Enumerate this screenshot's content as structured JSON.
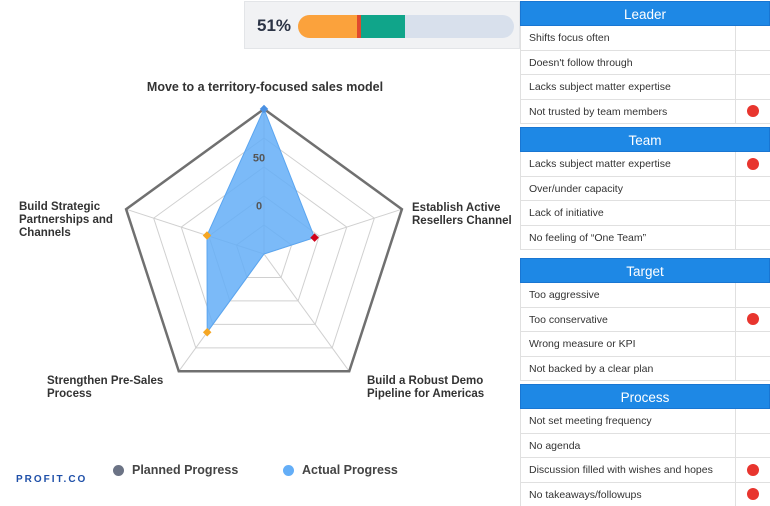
{
  "progress": {
    "percent_label": "51%",
    "orange_fraction": 0.28,
    "green_fraction": 0.2,
    "orange_color": "#fba23c",
    "marker_color": "#e04a2f",
    "green_color": "#10a58a"
  },
  "chart_data": {
    "type": "radar",
    "title": "Move to a territory-focused sales model",
    "axes": [
      "Move to a territory-focused sales model",
      "Establish Active Resellers Channel",
      "Build a Robust Demo Pipeline for Americas",
      "Strengthen Pre-Sales Process",
      "Build Strategic Partnerships and Channels"
    ],
    "ticks": [
      "0",
      "50"
    ],
    "range": [
      -50,
      100
    ],
    "series": [
      {
        "name": "Planned Progress",
        "values": [
          100,
          100,
          100,
          100,
          100
        ]
      },
      {
        "name": "Actual Progress",
        "values": [
          100,
          5,
          -50,
          50,
          12
        ]
      }
    ],
    "point_colors": [
      "#4a90e2",
      "#d0021b",
      "#4a90e2",
      "#f5a623",
      "#f5a623"
    ]
  },
  "axis_labels": {
    "right": [
      "Establish Active",
      "Resellers Channel"
    ],
    "bottom_right": [
      "Build a Robust Demo",
      "Pipeline for Americas"
    ],
    "bottom_left": [
      "Strengthen Pre-Sales",
      "Process"
    ],
    "left": [
      "Build Strategic",
      "Partnerships and",
      "Channels"
    ]
  },
  "legend": {
    "planned": {
      "label": "Planned Progress",
      "color": "#6b7385"
    },
    "actual": {
      "label": "Actual Progress",
      "color": "#64aef7"
    }
  },
  "logo": "PROFIT.CO",
  "panels": [
    {
      "title": "Leader",
      "items": [
        {
          "label": "Shifts focus often",
          "flag": false
        },
        {
          "label": "Doesn't follow through",
          "flag": false
        },
        {
          "label": "Lacks subject matter expertise",
          "flag": false
        },
        {
          "label": "Not trusted by team members",
          "flag": true
        }
      ]
    },
    {
      "title": "Team",
      "items": [
        {
          "label": "Lacks subject matter expertise",
          "flag": true
        },
        {
          "label": "Over/under capacity",
          "flag": false
        },
        {
          "label": "Lack of initiative",
          "flag": false
        },
        {
          "label": "No feeling of “One Team”",
          "flag": false
        }
      ]
    },
    {
      "title": "Target",
      "items": [
        {
          "label": "Too aggressive",
          "flag": false
        },
        {
          "label": "Too conservative",
          "flag": true
        },
        {
          "label": "Wrong measure or KPI",
          "flag": false
        },
        {
          "label": "Not backed by a clear plan",
          "flag": false
        }
      ]
    },
    {
      "title": "Process",
      "items": [
        {
          "label": "Not set meeting frequency",
          "flag": false
        },
        {
          "label": "No agenda",
          "flag": false
        },
        {
          "label": "Discussion filled with wishes and hopes",
          "flag": true
        },
        {
          "label": "No takeaways/followups",
          "flag": true
        }
      ]
    }
  ],
  "colors": {
    "flag": "#e8352e",
    "header": "#1e88e5"
  }
}
